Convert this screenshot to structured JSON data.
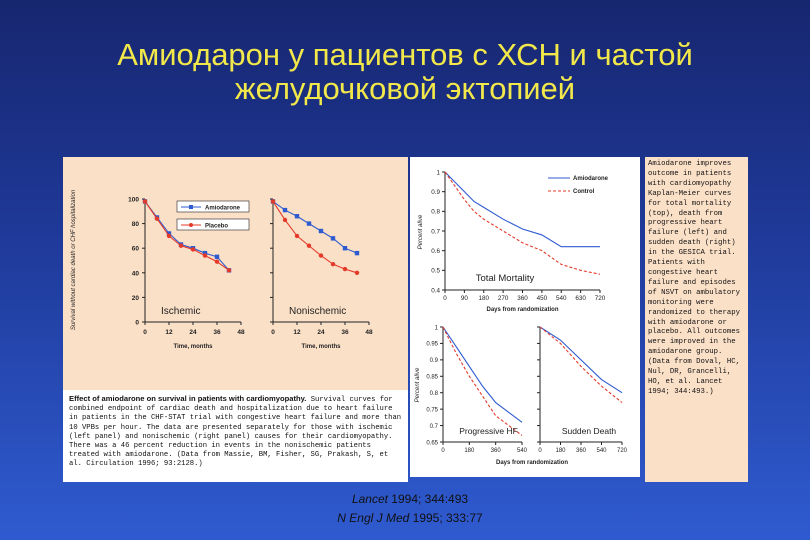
{
  "slide": {
    "title_line1": "Амиодарон у пациентов с ХСН и частой",
    "title_line2": "желудочковой эктопией",
    "colors": {
      "background_top": "#17266f",
      "background_bottom": "#2f5bd0",
      "title": "#f2e84a",
      "panel_beige": "#fbe0c8",
      "series_amiodarone": "#2f5bd0",
      "series_placebo": "#e43a2a"
    }
  },
  "references": {
    "line1_journal": "Lancet",
    "line1_rest": " 1994; 344:493",
    "line2_journal": "N Engl J Med",
    "line2_rest": " 1995; 333:77"
  },
  "left_chart": {
    "ylabel": "Survival without cardiac death or CHF hospitalization",
    "yticks": [
      "0",
      "20",
      "40",
      "60",
      "80",
      "100"
    ],
    "legend": [
      "Amiodarone",
      "Placebo"
    ],
    "xlabel": "Time, months",
    "xticks": [
      "0",
      "12",
      "24",
      "36",
      "48"
    ],
    "panel_labels": [
      "Ischemic",
      "Nonischemic"
    ]
  },
  "right_top_chart": {
    "ylabel": "Percent alive",
    "yticks": [
      "0.4",
      "0.5",
      "0.6",
      "0.7",
      "0.8",
      "0.9",
      "1"
    ],
    "legend": [
      "Amiodarone",
      "Control"
    ],
    "label": "Total Mortality",
    "xlabel": "Days from randomization",
    "xticks": [
      "0",
      "90",
      "180",
      "270",
      "360",
      "450",
      "540",
      "630",
      "720"
    ]
  },
  "right_bottom_chart": {
    "ylabel": "Percent alive",
    "yticks": [
      "0.65",
      "0.7",
      "0.75",
      "0.8",
      "0.85",
      "0.9",
      "0.95",
      "1"
    ],
    "labels": [
      "Progressive HF",
      "Sudden Death"
    ],
    "xlabel": "Days from randomization",
    "xticks_left": [
      "0",
      "180",
      "360",
      "540"
    ],
    "xticks_right": [
      "0",
      "180",
      "360",
      "540",
      "720"
    ]
  },
  "caption": {
    "bold": "Effect of amiodarone on survival in patients with cardiomyopathy.",
    "body": " Survival curves for combined endpoint of cardiac death and hospitalization due to heart failure in patients in the CHF-STAT trial with congestive heart failure and more than 10 VPBs per hour. The data are presented separately for those with ischemic (left panel) and nonischemic (right panel) causes for their cardiomyopathy. There was a 46 percent reduction in events in the nonischemic patients treated with amiodarone. (Data from Massie, BM, Fisher, SG, Prakash, S, et al. Circulation 1996; 93:2128.)"
  },
  "note": {
    "text": "Amiodarone improves outcome in patients with cardiomyopathy\nKaplan-Meier curves for total mortality (top), death from progressive heart failure (left) and sudden death (right) in the GESICA trial. Patients with congestive heart failure and episodes of NSVT on ambulatory monitoring were randomized to therapy with amiodarone or placebo. All outcomes were improved in the amiodarone group. (Data from Doval, HC, Nul, DR, Grancelli, HO, et al. Lancet 1994; 344:493.)"
  },
  "chart_data": [
    {
      "type": "line",
      "title": "Ischemic",
      "xlabel": "Time, months",
      "ylabel": "Survival without cardiac death or CHF hospitalization",
      "x": [
        0,
        6,
        12,
        18,
        24,
        30,
        36,
        42
      ],
      "ylim": [
        0,
        100
      ],
      "xlim": [
        0,
        48
      ],
      "series": [
        {
          "name": "Amiodarone",
          "values": [
            98,
            85,
            72,
            63,
            60,
            56,
            53,
            42
          ]
        },
        {
          "name": "Placebo",
          "values": [
            98,
            84,
            70,
            62,
            59,
            54,
            49,
            42
          ]
        }
      ]
    },
    {
      "type": "line",
      "title": "Nonischemic",
      "xlabel": "Time, months",
      "ylabel": "Survival without cardiac death or CHF hospitalization",
      "x": [
        0,
        6,
        12,
        18,
        24,
        30,
        36,
        42
      ],
      "ylim": [
        0,
        100
      ],
      "xlim": [
        0,
        48
      ],
      "series": [
        {
          "name": "Amiodarone",
          "values": [
            98,
            91,
            86,
            80,
            74,
            68,
            60,
            56
          ]
        },
        {
          "name": "Placebo",
          "values": [
            98,
            83,
            70,
            62,
            54,
            47,
            43,
            40
          ]
        }
      ]
    },
    {
      "type": "line",
      "title": "Total Mortality",
      "xlabel": "Days from randomization",
      "ylabel": "Percent alive",
      "x": [
        0,
        45,
        90,
        135,
        180,
        270,
        360,
        450,
        540,
        630,
        720
      ],
      "ylim": [
        0.4,
        1
      ],
      "xlim": [
        0,
        720
      ],
      "series": [
        {
          "name": "Amiodarone",
          "values": [
            1.0,
            0.95,
            0.9,
            0.85,
            0.82,
            0.76,
            0.71,
            0.68,
            0.62,
            0.62,
            0.62
          ]
        },
        {
          "name": "Control",
          "values": [
            1.0,
            0.93,
            0.86,
            0.8,
            0.76,
            0.7,
            0.64,
            0.6,
            0.53,
            0.5,
            0.48
          ]
        }
      ]
    },
    {
      "type": "line",
      "title": "Progressive HF",
      "xlabel": "Days from randomization",
      "ylabel": "Percent alive",
      "x": [
        0,
        90,
        180,
        270,
        360,
        450,
        540
      ],
      "ylim": [
        0.65,
        1
      ],
      "xlim": [
        0,
        540
      ],
      "series": [
        {
          "name": "Amiodarone",
          "values": [
            1.0,
            0.94,
            0.88,
            0.82,
            0.77,
            0.74,
            0.71
          ]
        },
        {
          "name": "Control",
          "values": [
            1.0,
            0.92,
            0.85,
            0.79,
            0.73,
            0.7,
            0.67
          ]
        }
      ]
    },
    {
      "type": "line",
      "title": "Sudden Death",
      "xlabel": "Days from randomization",
      "ylabel": "Percent alive",
      "x": [
        0,
        180,
        360,
        540,
        720
      ],
      "ylim": [
        0.65,
        1
      ],
      "xlim": [
        0,
        720
      ],
      "series": [
        {
          "name": "Amiodarone",
          "values": [
            1.0,
            0.96,
            0.9,
            0.84,
            0.8
          ]
        },
        {
          "name": "Control",
          "values": [
            1.0,
            0.95,
            0.88,
            0.82,
            0.77
          ]
        }
      ]
    }
  ]
}
